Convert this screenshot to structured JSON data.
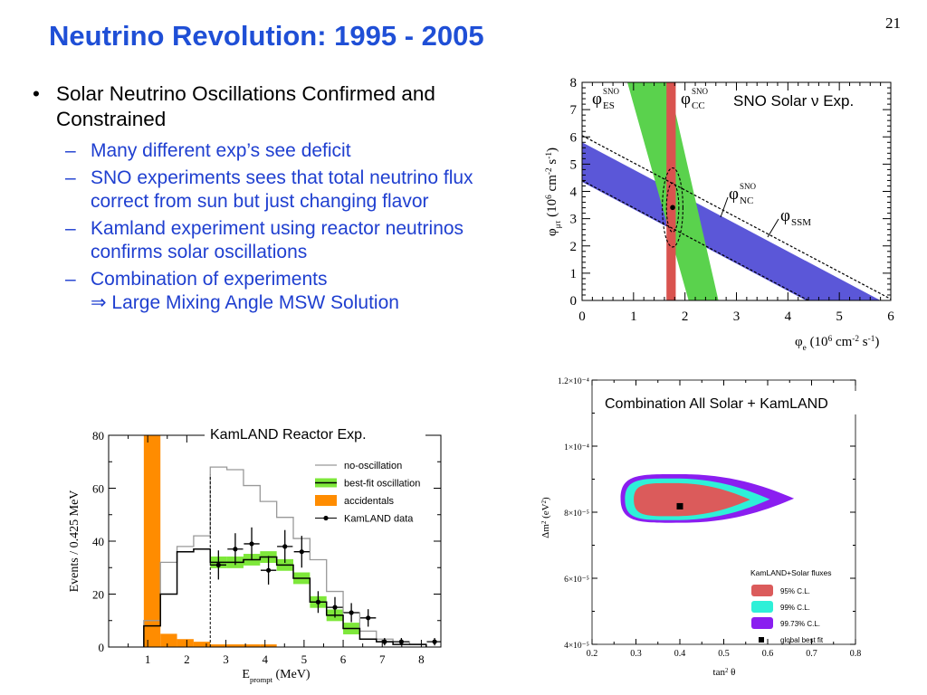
{
  "slide": {
    "title": "Neutrino Revolution: 1995 - 2005",
    "page_number": "21"
  },
  "bullets": {
    "main": "Solar Neutrino Oscillations Confirmed and Constrained",
    "subs": [
      "Many different exp’s see deficit",
      "SNO experiments sees that total neutrino flux correct from sun but just changing flavor",
      "Kamland experiment using reactor neutrinos confirms solar oscillations",
      "Combination of experiments",
      "⇒ Large Mixing Angle MSW Solution"
    ]
  },
  "chart_data": [
    {
      "type": "band",
      "title": "SNO Solar ν Exp.",
      "xlabel": "φe (10^6 cm^-2 s^-1)",
      "ylabel": "φμτ (10^6 cm^-2 s^-1)",
      "xlim": [
        0,
        6
      ],
      "ylim": [
        0,
        8
      ],
      "xticks": [
        "0",
        "1",
        "2",
        "3",
        "4",
        "5",
        "6"
      ],
      "yticks": [
        "0",
        "1",
        "2",
        "3",
        "4",
        "5",
        "6",
        "7",
        "8"
      ],
      "band_labels": {
        "es": {
          "sym": "φ",
          "sup": "SNO",
          "sub": "ES"
        },
        "cc": {
          "sym": "φ",
          "sup": "SNO",
          "sub": "CC"
        },
        "nc": {
          "sym": "φ",
          "sup": "SNO",
          "sub": "NC"
        },
        "ssm": {
          "sym": "φ",
          "sub": "SSM"
        }
      },
      "cc_band": {
        "x_min": 1.64,
        "x_max": 1.82,
        "color": "#d9534f"
      },
      "es_band": {
        "top": [
          [
            0.88,
            8
          ],
          [
            1.68,
            8
          ]
        ],
        "bottom": [
          [
            2.07,
            0
          ],
          [
            2.65,
            0
          ]
        ],
        "color": "#5ad24d"
      },
      "nc_band": {
        "upper_at_x0": 5.8,
        "lower_at_x0": 4.35,
        "slope": -1,
        "color": "#5b57d8"
      },
      "ssm_lines": {
        "upper_at_x0": 6.05,
        "lower_at_x0": 4.4,
        "slope": -1
      },
      "best_fit": {
        "x": 1.76,
        "y": 3.41
      },
      "contours": [
        {
          "rx": 0.12,
          "ry": 0.9
        },
        {
          "rx": 0.2,
          "ry": 1.45
        }
      ]
    },
    {
      "type": "histogram",
      "title": "KamLAND Reactor Exp.",
      "xlabel": "Eprompt (MeV)",
      "ylabel": "Events / 0.425 MeV",
      "xlim": [
        0,
        8.5
      ],
      "ylim": [
        0,
        80
      ],
      "xticks": [
        "1",
        "2",
        "3",
        "4",
        "5",
        "6",
        "7",
        "8"
      ],
      "yticks": [
        "0",
        "20",
        "40",
        "60",
        "80"
      ],
      "bin_edges": [
        0.9,
        1.325,
        1.75,
        2.175,
        2.6,
        3.025,
        3.45,
        3.875,
        4.3,
        4.725,
        5.15,
        5.575,
        6.0,
        6.425,
        6.85,
        7.275,
        7.7,
        8.125
      ],
      "no_oscillation": [
        10,
        32,
        38,
        42,
        68,
        67,
        61,
        55,
        49,
        41,
        33,
        21,
        13,
        6,
        3,
        2,
        1
      ],
      "best_fit_oscillation": [
        8,
        20,
        36,
        37,
        32,
        32,
        33,
        34,
        31,
        26,
        17,
        12,
        7,
        3,
        2,
        1,
        1
      ],
      "accidentals": [
        80,
        5,
        3,
        2,
        1,
        1,
        1,
        1,
        0,
        0,
        0,
        0,
        0,
        0,
        0,
        0,
        0
      ],
      "threshold_mev": 2.6,
      "kamland_data": {
        "x": [
          2.81,
          3.24,
          3.66,
          4.09,
          4.51,
          4.94,
          5.36,
          5.79,
          6.21,
          6.64,
          7.06,
          7.49,
          8.34
        ],
        "y": [
          31,
          37,
          39,
          29,
          38,
          36,
          17,
          15,
          13,
          11,
          2,
          2,
          2
        ],
        "err": [
          5.5,
          6,
          6.2,
          5.4,
          6.2,
          6,
          4.1,
          3.9,
          3.6,
          3.3,
          1.4,
          1.4,
          1.4
        ]
      },
      "legend": {
        "position": "top-right",
        "entries": [
          "no-oscillation",
          "best-fit oscillation",
          "accidentals",
          "KamLAND data"
        ]
      },
      "colors": {
        "no_oscillation": "#999999",
        "best_fit": "#7ee83a",
        "accidentals": "#ff8c00",
        "data": "#000000"
      }
    },
    {
      "type": "contour",
      "title": "Combination All Solar + KamLAND",
      "xlabel": "tan² θ",
      "ylabel": "Δm² (eV²)",
      "xlim": [
        0.2,
        0.8
      ],
      "ylim": [
        4e-05,
        0.00012
      ],
      "xticks": [
        "0.2",
        "0.3",
        "0.4",
        "0.5",
        "0.6",
        "0.7",
        "0.8"
      ],
      "yticks": [
        "4×10⁻⁵",
        "6×10⁻⁵",
        "8×10⁻⁵",
        "1×10⁻⁴",
        "1.2×10⁻⁴"
      ],
      "regions": [
        {
          "level": "99.73% C.L.",
          "x_left": 0.265,
          "x_right": 0.66,
          "y_low": 7.68e-05,
          "y_high": 9.15e-05,
          "color": "#8a1ef0"
        },
        {
          "level": "99% C.L.",
          "x_left": 0.275,
          "x_right": 0.605,
          "y_low": 7.76e-05,
          "y_high": 9.02e-05,
          "color": "#2ef0d8"
        },
        {
          "level": "95% C.L.",
          "x_left": 0.295,
          "x_right": 0.56,
          "y_low": 7.88e-05,
          "y_high": 8.88e-05,
          "color": "#db5b5b"
        }
      ],
      "best_fit": {
        "x": 0.4,
        "y": 8.18e-05
      },
      "legend": {
        "position": "bottom-right",
        "title": "KamLAND+Solar fluxes",
        "entries": [
          "95% C.L.",
          "99% C.L.",
          "99.73% C.L.",
          "global best fit"
        ]
      }
    }
  ]
}
